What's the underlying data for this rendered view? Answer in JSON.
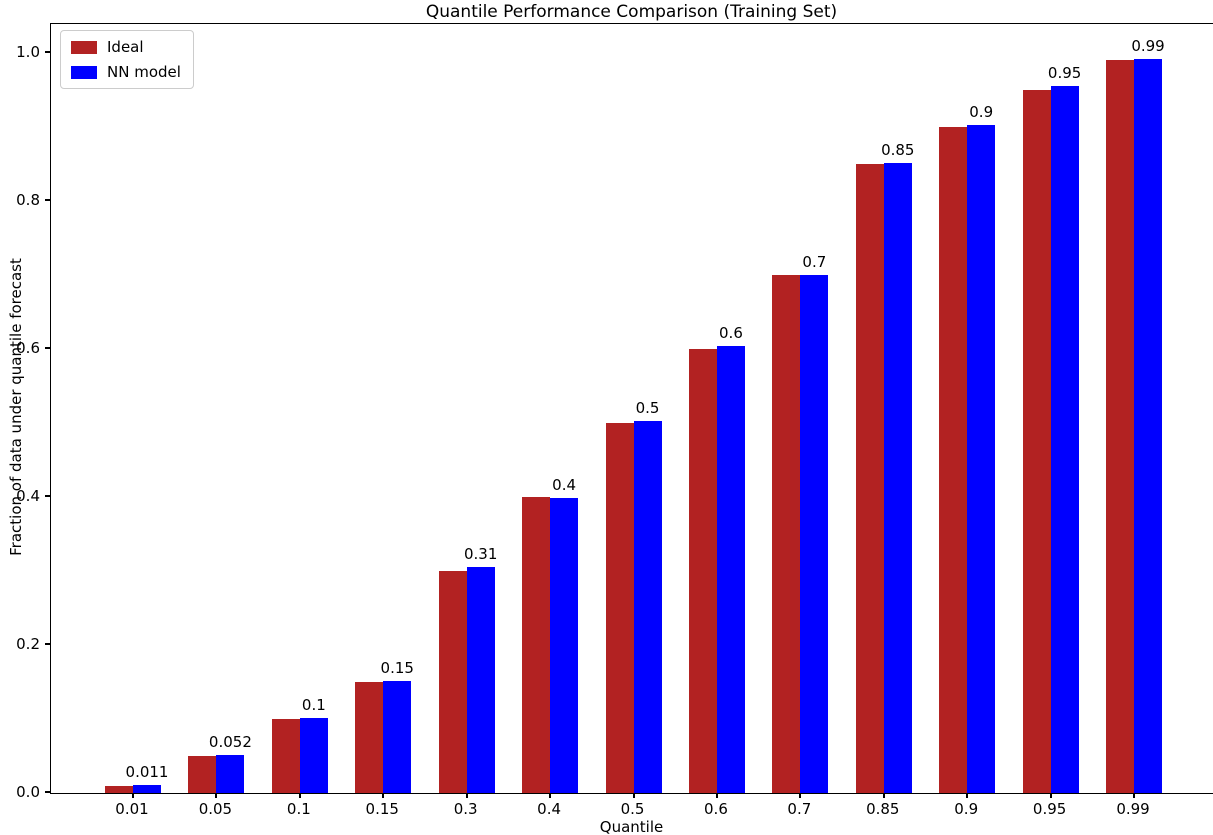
{
  "chart_data": {
    "type": "bar",
    "title": "Quantile Performance Comparison (Training Set)",
    "xlabel": "Quantile",
    "ylabel": "Fraction of data under quantile forecast",
    "categories": [
      "0.01",
      "0.05",
      "0.1",
      "0.15",
      "0.3",
      "0.4",
      "0.5",
      "0.6",
      "0.7",
      "0.85",
      "0.9",
      "0.95",
      "0.99"
    ],
    "series": [
      {
        "name": "Ideal",
        "color": "#b22222",
        "values": [
          0.01,
          0.05,
          0.1,
          0.15,
          0.3,
          0.4,
          0.5,
          0.6,
          0.7,
          0.85,
          0.9,
          0.95,
          0.99
        ]
      },
      {
        "name": "NN model",
        "color": "#0000ff",
        "values": [
          0.011,
          0.052,
          0.101,
          0.152,
          0.305,
          0.398,
          0.503,
          0.604,
          0.7,
          0.851,
          0.903,
          0.955,
          0.992
        ],
        "bar_labels": [
          "0.011",
          "0.052",
          "0.1",
          "0.15",
          "0.31",
          "0.4",
          "0.5",
          "0.6",
          "0.7",
          "0.85",
          "0.9",
          "0.95",
          "0.99"
        ]
      }
    ],
    "ylim": [
      0.0,
      1.04
    ],
    "yticks": [
      0.0,
      0.2,
      0.4,
      0.6,
      0.8,
      1.0
    ],
    "ytick_labels": [
      "0.0",
      "0.2",
      "0.4",
      "0.6",
      "0.8",
      "1.0"
    ],
    "legend_position": "upper left",
    "grid": false
  }
}
